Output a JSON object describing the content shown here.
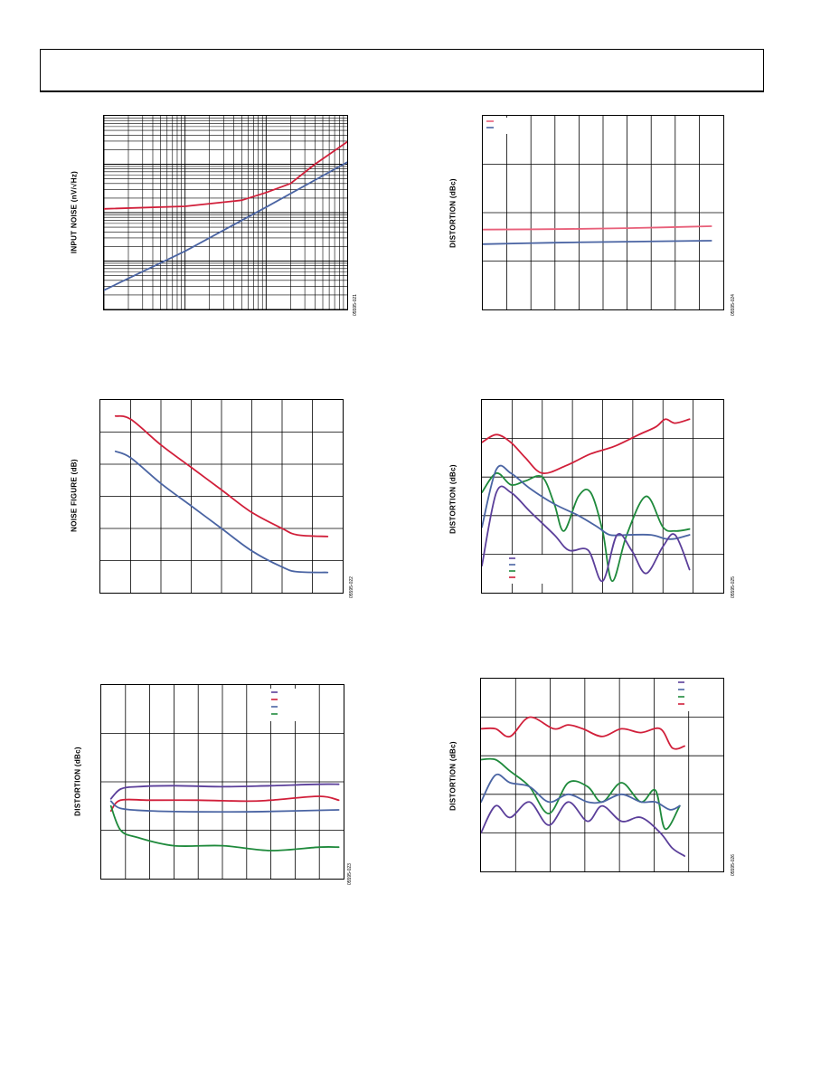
{
  "colors": {
    "red": "#d11f3a",
    "blue": "#4a64a3",
    "green": "#1f8a3c",
    "purple": "#5b3f9a",
    "pink": "#e8607a"
  },
  "chart_data": [
    {
      "id": "c1",
      "type": "line",
      "ylabel": "INPUT NOISE (nV/√Hz)",
      "code": "05595-021",
      "xscale": "log",
      "yscale": "log",
      "xlim": [
        1,
        1000
      ],
      "ylim": [
        1,
        10000
      ],
      "series": [
        {
          "color": "red",
          "points": [
            [
              1,
              120
            ],
            [
              10,
              135
            ],
            [
              50,
              180
            ],
            [
              100,
              260
            ],
            [
              200,
              400
            ],
            [
              400,
              1000
            ],
            [
              1000,
              2900
            ]
          ]
        },
        {
          "color": "blue",
          "points": [
            [
              1,
              2.5
            ],
            [
              10,
              16
            ],
            [
              100,
              130
            ],
            [
              1000,
              1100
            ]
          ]
        }
      ]
    },
    {
      "id": "c2",
      "type": "line",
      "ylabel": "DISTORTION (dBc)",
      "code": "05595-024",
      "xlim": [
        0,
        10
      ],
      "ylim": [
        0,
        4
      ],
      "series": [
        {
          "color": "pink",
          "points": [
            [
              0,
              1.65
            ],
            [
              3,
              1.66
            ],
            [
              6,
              1.68
            ],
            [
              9.5,
              1.72
            ]
          ]
        },
        {
          "color": "blue",
          "points": [
            [
              0,
              1.35
            ],
            [
              3,
              1.38
            ],
            [
              6,
              1.4
            ],
            [
              9.5,
              1.42
            ]
          ]
        }
      ],
      "legend": [
        {
          "color": "pink"
        },
        {
          "color": "blue"
        }
      ]
    },
    {
      "id": "c3",
      "type": "line",
      "ylabel": "NOISE FIGURE (dB)",
      "code": "05595-022",
      "xlim": [
        0,
        8
      ],
      "ylim": [
        0,
        6
      ],
      "series": [
        {
          "color": "red",
          "points": [
            [
              0.5,
              5.5
            ],
            [
              1,
              5.4
            ],
            [
              2,
              4.6
            ],
            [
              3,
              3.9
            ],
            [
              4,
              3.2
            ],
            [
              5,
              2.5
            ],
            [
              6,
              2.0
            ],
            [
              6.5,
              1.8
            ],
            [
              7.5,
              1.75
            ]
          ]
        },
        {
          "color": "blue",
          "points": [
            [
              0.5,
              4.4
            ],
            [
              1,
              4.2
            ],
            [
              2,
              3.4
            ],
            [
              3,
              2.7
            ],
            [
              4,
              2.0
            ],
            [
              5,
              1.3
            ],
            [
              6,
              0.8
            ],
            [
              6.5,
              0.65
            ],
            [
              7.5,
              0.63
            ]
          ]
        }
      ]
    },
    {
      "id": "c4",
      "type": "line",
      "ylabel": "DISTORTION (dBc)",
      "code": "05595-025",
      "xlim": [
        0,
        10
      ],
      "ylim": [
        0,
        5
      ],
      "series": [
        {
          "color": "red",
          "points": [
            [
              0,
              3.9
            ],
            [
              0.6,
              4.1
            ],
            [
              1.2,
              3.9
            ],
            [
              1.8,
              3.5
            ],
            [
              2.5,
              3.1
            ],
            [
              3.5,
              3.3
            ],
            [
              4.5,
              3.6
            ],
            [
              5.5,
              3.8
            ],
            [
              6.5,
              4.1
            ],
            [
              7.2,
              4.3
            ],
            [
              7.6,
              4.5
            ],
            [
              8.0,
              4.4
            ],
            [
              8.6,
              4.5
            ]
          ]
        },
        {
          "color": "green",
          "points": [
            [
              0,
              2.6
            ],
            [
              0.6,
              3.1
            ],
            [
              1.2,
              2.8
            ],
            [
              1.8,
              2.9
            ],
            [
              2.5,
              3.0
            ],
            [
              3.0,
              2.3
            ],
            [
              3.4,
              1.6
            ],
            [
              4.0,
              2.5
            ],
            [
              4.5,
              2.6
            ],
            [
              5.0,
              1.6
            ],
            [
              5.4,
              0.3
            ],
            [
              6.0,
              1.5
            ],
            [
              6.8,
              2.5
            ],
            [
              7.5,
              1.7
            ],
            [
              8.0,
              1.6
            ],
            [
              8.6,
              1.65
            ]
          ]
        },
        {
          "color": "blue",
          "points": [
            [
              0,
              1.7
            ],
            [
              0.6,
              3.2
            ],
            [
              1.2,
              3.1
            ],
            [
              2.0,
              2.7
            ],
            [
              3.0,
              2.3
            ],
            [
              4.0,
              2.0
            ],
            [
              4.8,
              1.7
            ],
            [
              5.3,
              1.5
            ],
            [
              6.0,
              1.5
            ],
            [
              7.0,
              1.5
            ],
            [
              7.6,
              1.4
            ],
            [
              8.0,
              1.4
            ],
            [
              8.6,
              1.5
            ]
          ]
        },
        {
          "color": "purple",
          "points": [
            [
              0,
              0.7
            ],
            [
              0.6,
              2.6
            ],
            [
              1.2,
              2.6
            ],
            [
              2.0,
              2.1
            ],
            [
              3.0,
              1.5
            ],
            [
              3.6,
              1.1
            ],
            [
              4.4,
              1.1
            ],
            [
              5.0,
              0.3
            ],
            [
              5.6,
              1.5
            ],
            [
              6.2,
              1.1
            ],
            [
              6.8,
              0.5
            ],
            [
              7.5,
              1.2
            ],
            [
              8.0,
              1.5
            ],
            [
              8.6,
              0.6
            ]
          ]
        }
      ],
      "legend": [
        {
          "color": "purple"
        },
        {
          "color": "blue"
        },
        {
          "color": "green"
        },
        {
          "color": "red"
        }
      ]
    },
    {
      "id": "c5",
      "type": "line",
      "ylabel": "DISTORTION (dBc)",
      "code": "05595-023",
      "xlim": [
        0,
        10
      ],
      "ylim": [
        0,
        4
      ],
      "series": [
        {
          "color": "purple",
          "points": [
            [
              0.4,
              1.65
            ],
            [
              0.8,
              1.85
            ],
            [
              1.5,
              1.9
            ],
            [
              3,
              1.92
            ],
            [
              5,
              1.9
            ],
            [
              7,
              1.92
            ],
            [
              9,
              1.95
            ],
            [
              9.8,
              1.95
            ]
          ]
        },
        {
          "color": "red",
          "points": [
            [
              0.4,
              1.4
            ],
            [
              0.8,
              1.62
            ],
            [
              2,
              1.62
            ],
            [
              4,
              1.62
            ],
            [
              6,
              1.6
            ],
            [
              7,
              1.62
            ],
            [
              9,
              1.7
            ],
            [
              9.8,
              1.62
            ]
          ]
        },
        {
          "color": "blue",
          "points": [
            [
              0.4,
              1.6
            ],
            [
              0.8,
              1.45
            ],
            [
              2,
              1.4
            ],
            [
              4,
              1.38
            ],
            [
              6,
              1.38
            ],
            [
              8,
              1.4
            ],
            [
              9.8,
              1.42
            ]
          ]
        },
        {
          "color": "green",
          "points": [
            [
              0.4,
              1.5
            ],
            [
              0.8,
              1.0
            ],
            [
              1.5,
              0.85
            ],
            [
              3,
              0.68
            ],
            [
              5,
              0.68
            ],
            [
              7,
              0.58
            ],
            [
              9,
              0.65
            ],
            [
              9.8,
              0.65
            ]
          ]
        }
      ],
      "legend": [
        {
          "color": "purple"
        },
        {
          "color": "red"
        },
        {
          "color": "blue"
        },
        {
          "color": "green"
        }
      ]
    },
    {
      "id": "c6",
      "type": "line",
      "ylabel": "DISTORTION (dBc)",
      "code": "05595-026",
      "xlim": [
        0,
        10
      ],
      "ylim": [
        0,
        5
      ],
      "series": [
        {
          "color": "red",
          "points": [
            [
              0,
              3.7
            ],
            [
              0.6,
              3.7
            ],
            [
              1.2,
              3.5
            ],
            [
              2.0,
              4.0
            ],
            [
              3.0,
              3.7
            ],
            [
              3.6,
              3.8
            ],
            [
              4.2,
              3.7
            ],
            [
              5.0,
              3.5
            ],
            [
              5.8,
              3.7
            ],
            [
              6.6,
              3.6
            ],
            [
              7.4,
              3.7
            ],
            [
              7.9,
              3.2
            ],
            [
              8.4,
              3.25
            ]
          ]
        },
        {
          "color": "green",
          "points": [
            [
              0,
              2.9
            ],
            [
              0.6,
              2.9
            ],
            [
              1.2,
              2.6
            ],
            [
              2.0,
              2.2
            ],
            [
              2.8,
              1.5
            ],
            [
              3.6,
              2.3
            ],
            [
              4.4,
              2.2
            ],
            [
              5.0,
              1.8
            ],
            [
              5.8,
              2.3
            ],
            [
              6.6,
              1.8
            ],
            [
              7.2,
              2.1
            ],
            [
              7.6,
              1.1
            ],
            [
              8.2,
              1.7
            ]
          ]
        },
        {
          "color": "blue",
          "points": [
            [
              0,
              1.8
            ],
            [
              0.6,
              2.5
            ],
            [
              1.2,
              2.3
            ],
            [
              2.0,
              2.2
            ],
            [
              2.8,
              1.8
            ],
            [
              3.6,
              2.0
            ],
            [
              4.4,
              1.8
            ],
            [
              5.0,
              1.8
            ],
            [
              5.8,
              2.0
            ],
            [
              6.6,
              1.8
            ],
            [
              7.2,
              1.8
            ],
            [
              7.8,
              1.6
            ],
            [
              8.2,
              1.7
            ]
          ]
        },
        {
          "color": "purple",
          "points": [
            [
              0,
              1.0
            ],
            [
              0.6,
              1.7
            ],
            [
              1.2,
              1.4
            ],
            [
              2.0,
              1.8
            ],
            [
              2.8,
              1.2
            ],
            [
              3.6,
              1.8
            ],
            [
              4.4,
              1.3
            ],
            [
              5.0,
              1.7
            ],
            [
              5.8,
              1.3
            ],
            [
              6.6,
              1.4
            ],
            [
              7.4,
              1.0
            ],
            [
              7.9,
              0.6
            ],
            [
              8.4,
              0.4
            ]
          ]
        }
      ],
      "legend": [
        {
          "color": "purple"
        },
        {
          "color": "blue"
        },
        {
          "color": "green"
        },
        {
          "color": "red"
        }
      ]
    }
  ]
}
